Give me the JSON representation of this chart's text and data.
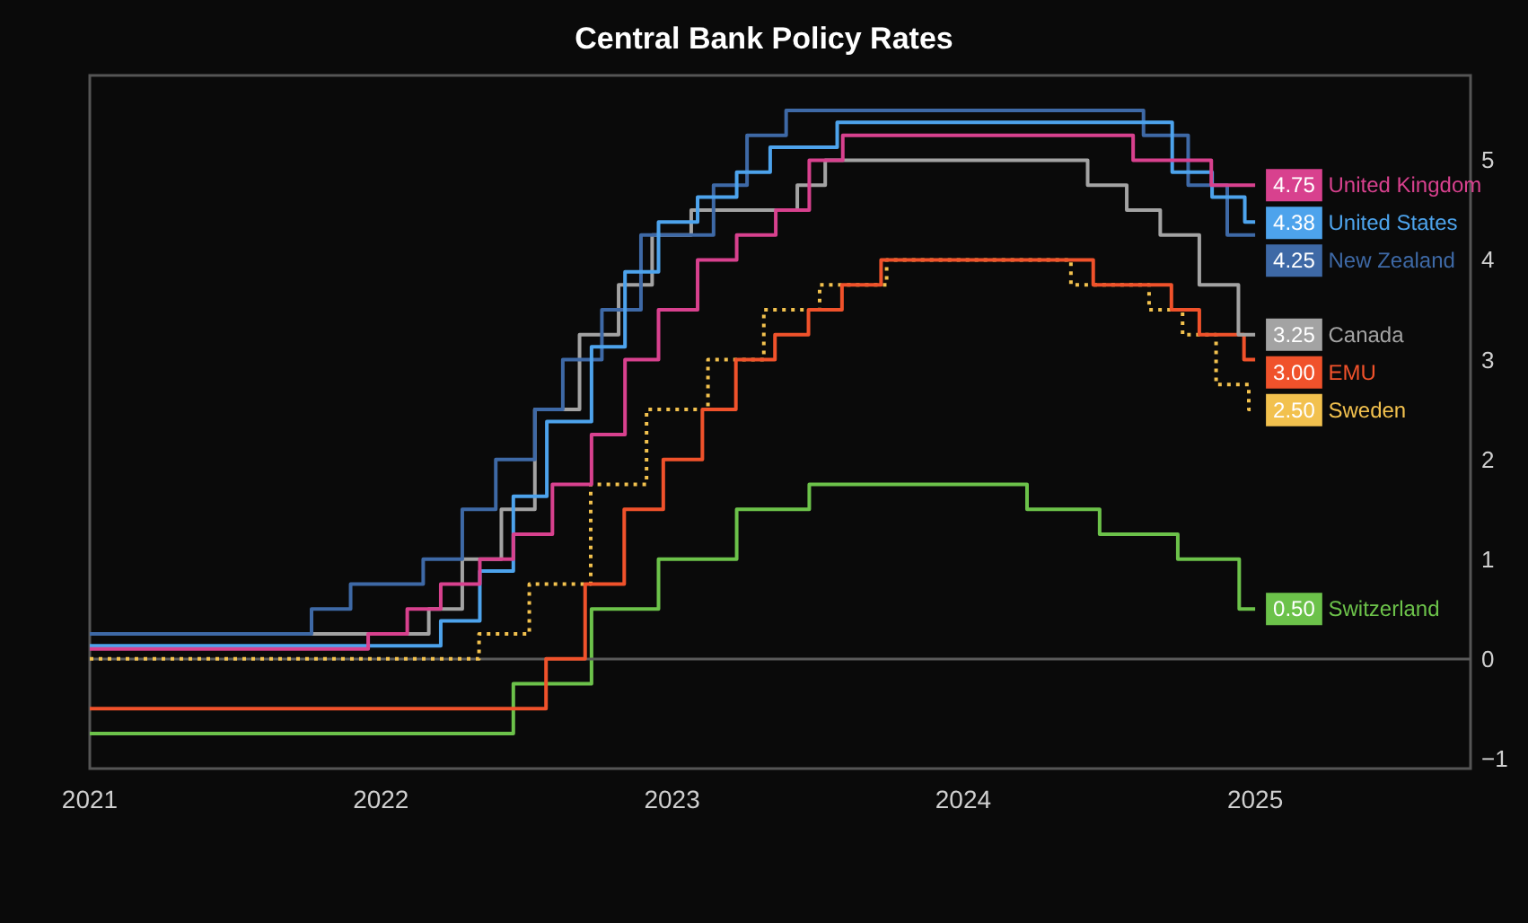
{
  "chart_data": {
    "type": "step",
    "title": "Central Bank Policy Rates",
    "xlim": [
      "2021-01-01",
      "2025-09-28"
    ],
    "xticks": [
      "2021",
      "2022",
      "2023",
      "2024",
      "2025"
    ],
    "ylim": [
      -1.1,
      5.85
    ],
    "yticks": [
      {
        "value": -1,
        "label": "−1"
      },
      0,
      1,
      2,
      3,
      4,
      5
    ],
    "grid": false,
    "legend": "right",
    "marker": "none",
    "ref_lines": [
      {
        "axis": "y",
        "value": 0,
        "color": "#5a5a5a"
      }
    ],
    "series": [
      {
        "name": "United Kingdom",
        "color": "#d8418e",
        "x": [
          "2021-01-01",
          "2021-12-16",
          "2022-02-03",
          "2022-03-17",
          "2022-05-05",
          "2022-06-16",
          "2022-08-04",
          "2022-09-22",
          "2022-11-03",
          "2022-12-15",
          "2023-02-02",
          "2023-03-23",
          "2023-05-11",
          "2023-06-22",
          "2023-08-03",
          "2024-08-01",
          "2024-11-07",
          "2025-01-01"
        ],
        "values": [
          0.1,
          0.25,
          0.5,
          0.75,
          1.0,
          1.25,
          1.75,
          2.25,
          3.0,
          3.5,
          4.0,
          4.25,
          4.5,
          5.0,
          5.25,
          5.0,
          4.75,
          4.75
        ],
        "value_labels": [
          null,
          null,
          null,
          null,
          null,
          null,
          null,
          null,
          null,
          null,
          null,
          null,
          null,
          null,
          null,
          null,
          null,
          "4.75"
        ]
      },
      {
        "name": "United States",
        "color": "#4da3ec",
        "x": [
          "2021-01-01",
          "2022-03-17",
          "2022-05-05",
          "2022-06-16",
          "2022-07-28",
          "2022-09-22",
          "2022-11-03",
          "2022-12-15",
          "2023-02-02",
          "2023-03-23",
          "2023-05-04",
          "2023-07-27",
          "2024-09-19",
          "2024-11-08",
          "2024-12-19",
          "2025-01-01"
        ],
        "values": [
          0.13,
          0.38,
          0.88,
          1.63,
          2.38,
          3.13,
          3.88,
          4.38,
          4.63,
          4.88,
          5.13,
          5.38,
          4.88,
          4.63,
          4.38,
          4.38
        ],
        "value_labels": [
          null,
          null,
          null,
          null,
          null,
          null,
          null,
          null,
          null,
          null,
          null,
          null,
          null,
          null,
          null,
          "4.38"
        ]
      },
      {
        "name": "New Zealand",
        "color": "#3e69a6",
        "x": [
          "2021-01-01",
          "2021-10-06",
          "2021-11-24",
          "2022-02-23",
          "2022-04-13",
          "2022-05-25",
          "2022-07-13",
          "2022-08-17",
          "2022-10-05",
          "2022-11-23",
          "2023-02-22",
          "2023-04-05",
          "2023-05-24",
          "2024-08-14",
          "2024-10-09",
          "2024-11-27",
          "2025-01-01"
        ],
        "values": [
          0.25,
          0.5,
          0.75,
          1.0,
          1.5,
          2.0,
          2.5,
          3.0,
          3.5,
          4.25,
          4.75,
          5.25,
          5.5,
          5.25,
          4.75,
          4.25,
          4.25
        ],
        "value_labels": [
          null,
          null,
          null,
          null,
          null,
          null,
          null,
          null,
          null,
          null,
          null,
          null,
          null,
          null,
          null,
          null,
          "4.25"
        ]
      },
      {
        "name": "Canada",
        "color": "#a3a3a3",
        "x": [
          "2021-01-01",
          "2022-03-02",
          "2022-04-13",
          "2022-06-01",
          "2022-07-13",
          "2022-09-07",
          "2022-10-26",
          "2022-12-07",
          "2023-01-25",
          "2023-06-07",
          "2023-07-12",
          "2024-06-05",
          "2024-07-24",
          "2024-09-04",
          "2024-10-23",
          "2024-12-11",
          "2025-01-01"
        ],
        "values": [
          0.25,
          0.5,
          1.0,
          1.5,
          2.5,
          3.25,
          3.75,
          4.25,
          4.5,
          4.75,
          5.0,
          4.75,
          4.5,
          4.25,
          3.75,
          3.25,
          3.25
        ],
        "value_labels": [
          null,
          null,
          null,
          null,
          null,
          null,
          null,
          null,
          null,
          null,
          null,
          null,
          null,
          null,
          null,
          null,
          "3.25"
        ]
      },
      {
        "name": "EMU",
        "color": "#f0522b",
        "x": [
          "2021-01-01",
          "2022-07-27",
          "2022-09-14",
          "2022-11-02",
          "2022-12-21",
          "2023-02-08",
          "2023-03-22",
          "2023-05-10",
          "2023-06-21",
          "2023-08-02",
          "2023-09-20",
          "2024-06-12",
          "2024-09-18",
          "2024-10-23",
          "2024-12-18",
          "2025-01-01"
        ],
        "values": [
          -0.5,
          0.0,
          0.75,
          1.5,
          2.0,
          2.5,
          3.0,
          3.25,
          3.5,
          3.75,
          4.0,
          3.75,
          3.5,
          3.25,
          3.0,
          3.0
        ],
        "value_labels": [
          null,
          null,
          null,
          null,
          null,
          null,
          null,
          null,
          null,
          null,
          null,
          null,
          null,
          null,
          null,
          "3.00"
        ]
      },
      {
        "name": "Sweden",
        "color": "#f2c14e",
        "line_style": "dotted",
        "x": [
          "2021-01-01",
          "2022-05-04",
          "2022-07-06",
          "2022-09-21",
          "2022-11-30",
          "2023-02-15",
          "2023-04-26",
          "2023-07-05",
          "2023-09-27",
          "2024-05-15",
          "2024-08-21",
          "2024-10-02",
          "2024-11-13",
          "2024-12-24",
          "2025-01-01"
        ],
        "values": [
          0.0,
          0.25,
          0.75,
          1.75,
          2.5,
          3.0,
          3.5,
          3.75,
          4.0,
          3.75,
          3.5,
          3.25,
          2.75,
          2.5,
          2.5
        ],
        "value_labels": [
          null,
          null,
          null,
          null,
          null,
          null,
          null,
          null,
          null,
          null,
          null,
          null,
          null,
          null,
          "2.50"
        ]
      },
      {
        "name": "Switzerland",
        "color": "#6cc24a",
        "x": [
          "2021-01-01",
          "2022-06-16",
          "2022-09-22",
          "2022-12-15",
          "2023-03-23",
          "2023-06-22",
          "2024-03-21",
          "2024-06-20",
          "2024-09-26",
          "2024-12-12",
          "2025-01-01"
        ],
        "values": [
          -0.75,
          -0.25,
          0.5,
          1.0,
          1.5,
          1.75,
          1.5,
          1.25,
          1.0,
          0.5,
          0.5
        ],
        "value_labels": [
          null,
          null,
          null,
          null,
          null,
          null,
          null,
          null,
          null,
          null,
          "0.50"
        ]
      }
    ]
  }
}
